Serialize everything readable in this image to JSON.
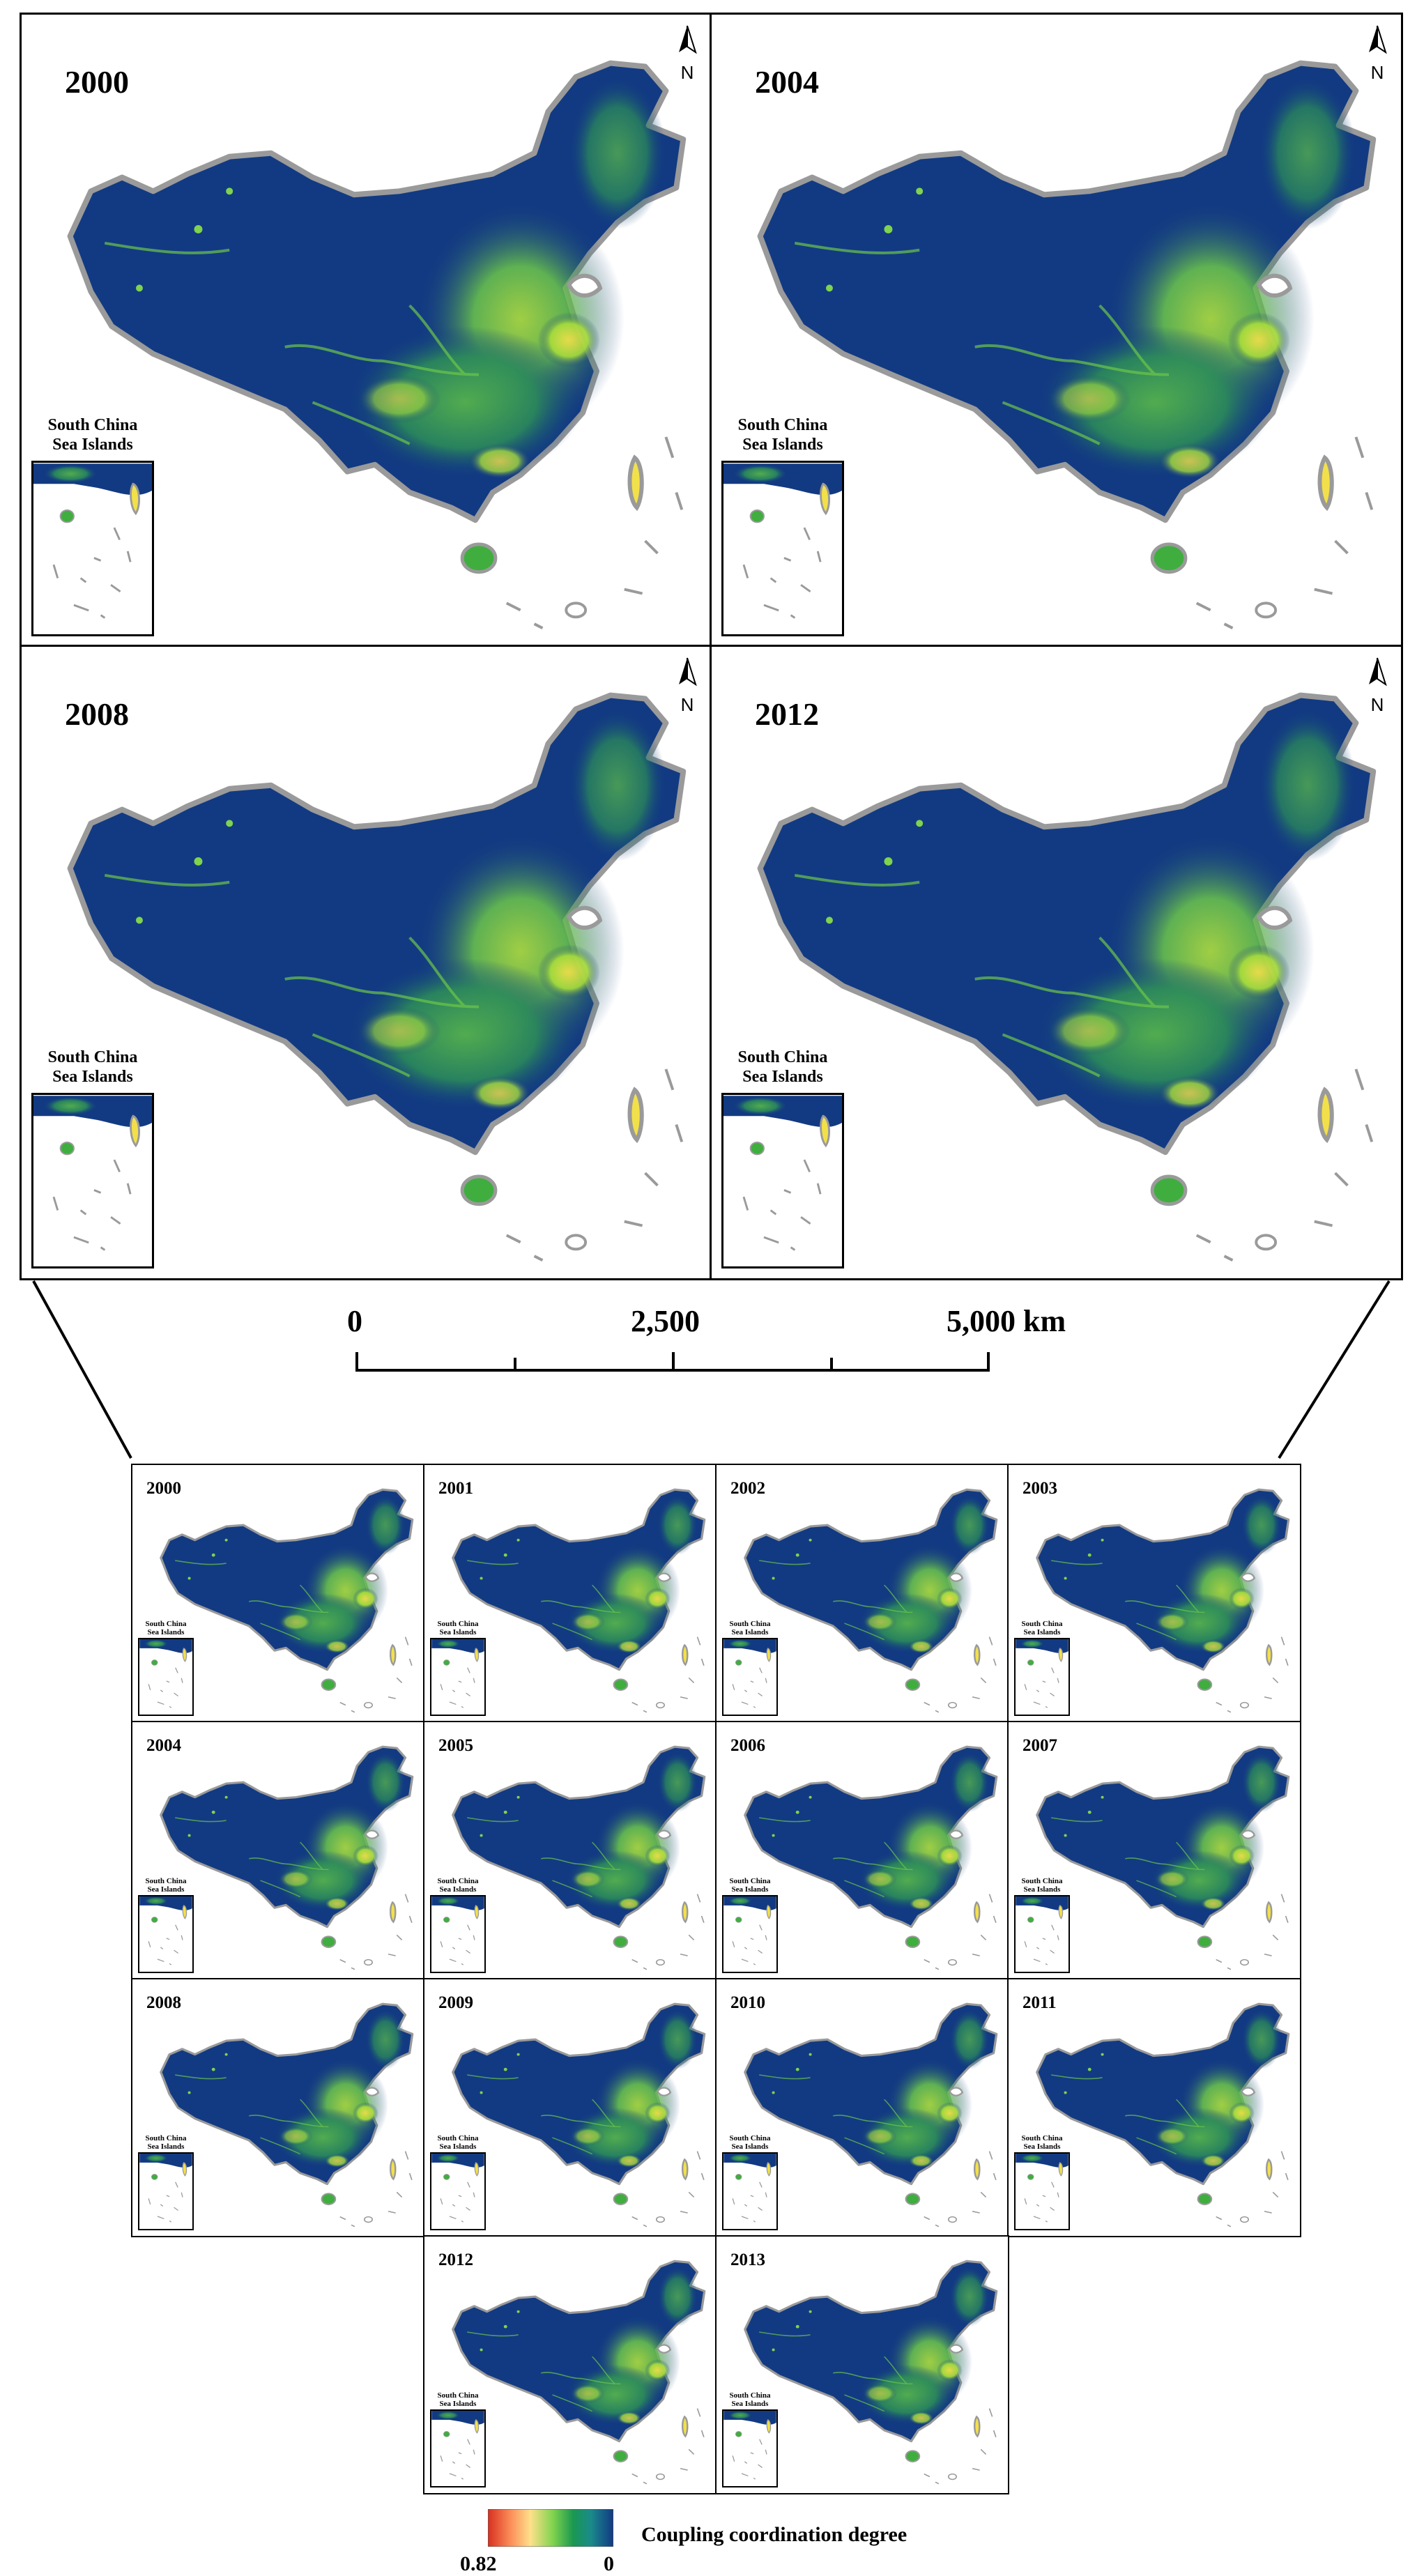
{
  "large_panels": [
    {
      "year": "2000",
      "inset_label_1": "South China",
      "inset_label_2": "Sea Islands",
      "north": "N"
    },
    {
      "year": "2004",
      "inset_label_1": "South China",
      "inset_label_2": "Sea Islands",
      "north": "N"
    },
    {
      "year": "2008",
      "inset_label_1": "South China",
      "inset_label_2": "Sea Islands",
      "north": "N"
    },
    {
      "year": "2012",
      "inset_label_1": "South China",
      "inset_label_2": "Sea Islands",
      "north": "N"
    }
  ],
  "scale_bar": {
    "label_0": "0",
    "label_mid": "2,500",
    "label_end": "5,000 km"
  },
  "small_panels": [
    {
      "year": "2000",
      "inset_label_1": "South China",
      "inset_label_2": "Sea Islands"
    },
    {
      "year": "2001",
      "inset_label_1": "South China",
      "inset_label_2": "Sea Islands"
    },
    {
      "year": "2002",
      "inset_label_1": "South China",
      "inset_label_2": "Sea Islands"
    },
    {
      "year": "2003",
      "inset_label_1": "South China",
      "inset_label_2": "Sea Islands"
    },
    {
      "year": "2004",
      "inset_label_1": "South China",
      "inset_label_2": "Sea Islands"
    },
    {
      "year": "2005",
      "inset_label_1": "South China",
      "inset_label_2": "Sea Islands"
    },
    {
      "year": "2006",
      "inset_label_1": "South China",
      "inset_label_2": "Sea Islands"
    },
    {
      "year": "2007",
      "inset_label_1": "South China",
      "inset_label_2": "Sea Islands"
    },
    {
      "year": "2008",
      "inset_label_1": "South China",
      "inset_label_2": "Sea Islands"
    },
    {
      "year": "2009",
      "inset_label_1": "South China",
      "inset_label_2": "Sea Islands"
    },
    {
      "year": "2010",
      "inset_label_1": "South China",
      "inset_label_2": "Sea Islands"
    },
    {
      "year": "2011",
      "inset_label_1": "South China",
      "inset_label_2": "Sea Islands"
    },
    {
      "year": "2012",
      "inset_label_1": "South China",
      "inset_label_2": "Sea Islands"
    },
    {
      "year": "2013",
      "inset_label_1": "South China",
      "inset_label_2": "Sea Islands"
    }
  ],
  "legend": {
    "title": "Coupling coordination degree",
    "max_label": "0.82",
    "min_label": "0",
    "colors": [
      "#d7301f",
      "#fc8d59",
      "#fee08b",
      "#7fd34e",
      "#1a9850",
      "#1b8a8c",
      "#123a82"
    ]
  },
  "colors": {
    "map_base": "#123a82",
    "map_outline": "#9a9a9a",
    "bright_green": "#9be03a",
    "mid_green": "#3fae3f",
    "hot_yellow": "#f2e04a"
  }
}
